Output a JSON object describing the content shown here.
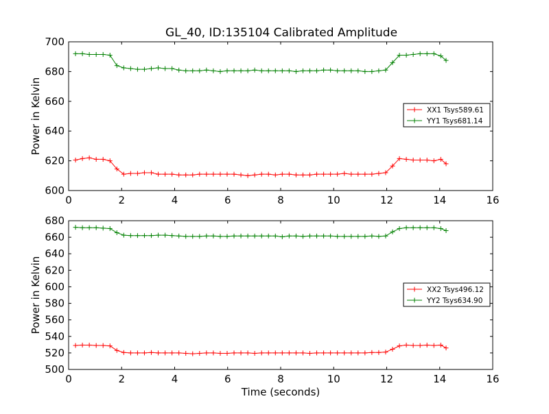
{
  "title": "GL_40, ID:135104 Calibrated Amplitude",
  "chart_data": [
    {
      "type": "line",
      "ylabel": "Power in Kelvin",
      "xlabel": "",
      "xlim": [
        0,
        16
      ],
      "ylim": [
        600,
        700
      ],
      "xticks": [
        0,
        2,
        4,
        6,
        8,
        10,
        12,
        14,
        16
      ],
      "yticks": [
        600,
        620,
        640,
        660,
        680,
        700
      ],
      "legend": "center-right",
      "grid": false,
      "x": [
        0.26,
        0.52,
        0.78,
        1.04,
        1.3,
        1.56,
        1.82,
        2.08,
        2.34,
        2.6,
        2.86,
        3.12,
        3.38,
        3.64,
        3.9,
        4.16,
        4.42,
        4.68,
        4.94,
        5.2,
        5.46,
        5.72,
        5.98,
        6.24,
        6.5,
        6.76,
        7.02,
        7.28,
        7.54,
        7.8,
        8.06,
        8.32,
        8.58,
        8.84,
        9.1,
        9.36,
        9.62,
        9.88,
        10.14,
        10.4,
        10.66,
        10.92,
        11.18,
        11.44,
        11.7,
        11.96,
        12.22,
        12.48,
        12.74,
        13.0,
        13.26,
        13.52,
        13.78,
        14.04,
        14.24
      ],
      "series": [
        {
          "name": "XX1 Tsys589.61",
          "color": "#ff0000",
          "values": [
            620.5,
            621.5,
            622.0,
            621.0,
            621.0,
            620.0,
            614.5,
            611.0,
            611.5,
            611.5,
            612.0,
            612.0,
            611.0,
            611.0,
            611.0,
            610.5,
            610.5,
            610.5,
            611.0,
            611.0,
            611.0,
            611.0,
            611.0,
            611.0,
            610.5,
            610.0,
            610.5,
            611.0,
            611.0,
            610.5,
            611.0,
            611.0,
            610.5,
            610.5,
            610.5,
            611.0,
            611.0,
            611.0,
            611.0,
            611.5,
            611.0,
            611.0,
            611.0,
            611.0,
            611.5,
            612.0,
            616.5,
            621.5,
            621.0,
            620.5,
            620.5,
            620.5,
            620.0,
            621.0,
            618.0
          ]
        },
        {
          "name": "YY1 Tsys681.14",
          "color": "#008000",
          "values": [
            692.0,
            692.0,
            691.5,
            691.5,
            691.5,
            691.0,
            684.0,
            682.5,
            682.0,
            681.5,
            681.5,
            682.0,
            682.5,
            682.0,
            682.0,
            681.0,
            680.5,
            680.5,
            680.5,
            681.0,
            680.5,
            680.0,
            680.5,
            680.5,
            680.5,
            680.5,
            681.0,
            680.5,
            680.5,
            680.5,
            680.5,
            680.5,
            680.0,
            680.5,
            680.5,
            680.5,
            681.0,
            681.0,
            680.5,
            680.5,
            680.5,
            680.5,
            680.0,
            680.0,
            680.5,
            681.0,
            686.0,
            691.0,
            691.0,
            691.5,
            692.0,
            692.0,
            692.0,
            690.5,
            687.5
          ]
        }
      ]
    },
    {
      "type": "line",
      "ylabel": "Power in Kelvin",
      "xlabel": "Time (seconds)",
      "xlim": [
        0,
        16
      ],
      "ylim": [
        500,
        680
      ],
      "xticks": [
        0,
        2,
        4,
        6,
        8,
        10,
        12,
        14,
        16
      ],
      "yticks": [
        500,
        520,
        540,
        560,
        580,
        600,
        620,
        640,
        660,
        680
      ],
      "legend": "center-right",
      "grid": false,
      "x": [
        0.26,
        0.52,
        0.78,
        1.04,
        1.3,
        1.56,
        1.82,
        2.08,
        2.34,
        2.6,
        2.86,
        3.12,
        3.38,
        3.64,
        3.9,
        4.16,
        4.42,
        4.68,
        4.94,
        5.2,
        5.46,
        5.72,
        5.98,
        6.24,
        6.5,
        6.76,
        7.02,
        7.28,
        7.54,
        7.8,
        8.06,
        8.32,
        8.58,
        8.84,
        9.1,
        9.36,
        9.62,
        9.88,
        10.14,
        10.4,
        10.66,
        10.92,
        11.18,
        11.44,
        11.7,
        11.96,
        12.22,
        12.48,
        12.74,
        13.0,
        13.26,
        13.52,
        13.78,
        14.04,
        14.24
      ],
      "series": [
        {
          "name": "XX2 Tsys496.12",
          "color": "#ff0000",
          "values": [
            529.0,
            529.5,
            529.5,
            529.0,
            529.0,
            528.5,
            523.0,
            520.5,
            520.0,
            520.0,
            520.0,
            520.5,
            520.0,
            520.0,
            520.0,
            520.0,
            519.5,
            519.0,
            519.5,
            520.0,
            520.0,
            519.5,
            519.5,
            520.0,
            520.0,
            520.0,
            519.5,
            520.0,
            520.0,
            520.0,
            520.0,
            520.0,
            520.0,
            520.0,
            519.5,
            520.0,
            520.0,
            520.0,
            520.0,
            520.0,
            520.0,
            520.0,
            520.0,
            520.5,
            520.5,
            521.0,
            524.5,
            528.5,
            529.5,
            529.0,
            529.0,
            529.5,
            529.0,
            529.5,
            526.0
          ]
        },
        {
          "name": "YY2 Tsys634.90",
          "color": "#008000",
          "values": [
            672.0,
            671.5,
            671.5,
            671.5,
            671.0,
            670.5,
            665.5,
            662.5,
            662.0,
            662.0,
            662.0,
            662.0,
            662.5,
            662.5,
            662.0,
            661.5,
            661.0,
            661.0,
            661.0,
            661.5,
            661.5,
            661.0,
            661.0,
            661.5,
            661.5,
            661.5,
            661.5,
            661.5,
            661.5,
            661.5,
            660.5,
            661.5,
            661.5,
            661.0,
            661.5,
            661.5,
            661.5,
            661.5,
            661.0,
            661.0,
            661.0,
            661.0,
            661.0,
            661.5,
            661.0,
            661.5,
            666.5,
            670.5,
            671.5,
            671.5,
            671.5,
            671.5,
            671.5,
            670.5,
            668.0
          ]
        }
      ]
    }
  ]
}
